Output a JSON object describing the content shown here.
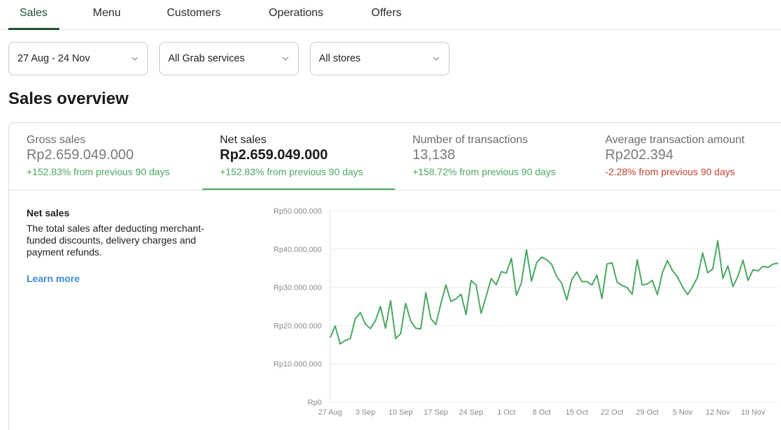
{
  "tabs": [
    {
      "label": "Sales",
      "active": true
    },
    {
      "label": "Menu",
      "active": false
    },
    {
      "label": "Customers",
      "active": false
    },
    {
      "label": "Operations",
      "active": false
    },
    {
      "label": "Offers",
      "active": false
    }
  ],
  "filters": {
    "date_range": "27 Aug - 24 Nov",
    "services": "All Grab services",
    "stores": "All stores"
  },
  "page_heading": "Sales overview",
  "metrics": [
    {
      "label": "Gross sales",
      "value": "Rp2.659.049.000",
      "change": "+152.83% from previous 90 days",
      "change_type": "positive",
      "active": false
    },
    {
      "label": "Net sales",
      "value": "Rp2.659.049.000",
      "change": "+152.83% from previous 90 days",
      "change_type": "positive",
      "active": true
    },
    {
      "label": "Number of transactions",
      "value": "13,138",
      "change": "+158.72% from previous 90 days",
      "change_type": "positive",
      "active": false
    },
    {
      "label": "Average transaction amount",
      "value": "Rp202.394",
      "change": "-2.28% from previous 90 days",
      "change_type": "negative",
      "active": false
    }
  ],
  "description": {
    "title": "Net sales",
    "body": "The total sales after deducting merchant-funded discounts, delivery charges and payment refunds.",
    "learn_more": "Learn more"
  },
  "colors": {
    "brand_green": "#1f5134",
    "accent_green": "#4aa862",
    "negative_red": "#c0412f",
    "link_blue": "#3a8bd6"
  },
  "chart_data": {
    "type": "line",
    "title": "",
    "xlabel": "",
    "ylabel": "",
    "ylim": [
      0,
      50000000
    ],
    "y_ticks": [
      0,
      10000000,
      20000000,
      30000000,
      40000000,
      50000000
    ],
    "y_tick_labels": [
      "Rp0",
      "Rp10.000.000",
      "Rp20.000.000",
      "Rp30.000.000",
      "Rp40.000.000",
      "Rp50.000.000"
    ],
    "x_tick_labels": [
      "27 Aug",
      "3 Sep",
      "10 Sep",
      "17 Sep",
      "24 Sep",
      "1 Oct",
      "8 Oct",
      "15 Oct",
      "22 Oct",
      "29 Oct",
      "5 Nov",
      "12 Nov",
      "19 Nov"
    ],
    "x_tick_day_index": [
      0,
      7,
      14,
      21,
      28,
      35,
      42,
      49,
      56,
      63,
      70,
      77,
      84
    ],
    "grid": true,
    "series": [
      {
        "color": "#4aa862",
        "values": [
          16800000,
          19900000,
          15200000,
          16100000,
          16600000,
          21800000,
          23400000,
          20400000,
          19200000,
          21300000,
          25000000,
          19300000,
          26500000,
          16600000,
          17900000,
          25800000,
          21200000,
          19300000,
          19100000,
          28600000,
          21800000,
          20300000,
          25800000,
          30600000,
          26300000,
          27000000,
          28200000,
          22900000,
          31800000,
          30600000,
          23200000,
          27700000,
          32300000,
          30700000,
          34100000,
          33700000,
          37600000,
          27900000,
          31200000,
          39800000,
          31600000,
          36400000,
          37900000,
          37200000,
          36000000,
          32800000,
          31100000,
          26700000,
          32000000,
          34000000,
          31500000,
          31500000,
          30600000,
          33200000,
          27100000,
          36100000,
          36400000,
          31300000,
          30500000,
          29900000,
          28200000,
          37200000,
          30600000,
          30900000,
          31800000,
          28100000,
          33800000,
          37000000,
          34400000,
          32700000,
          30100000,
          28100000,
          30200000,
          32700000,
          39000000,
          33800000,
          34800000,
          42200000,
          32300000,
          35600000,
          30200000,
          32900000,
          37100000,
          31800000,
          34600000,
          34300000,
          35500000,
          35200000,
          36100000,
          36300000
        ]
      }
    ]
  }
}
